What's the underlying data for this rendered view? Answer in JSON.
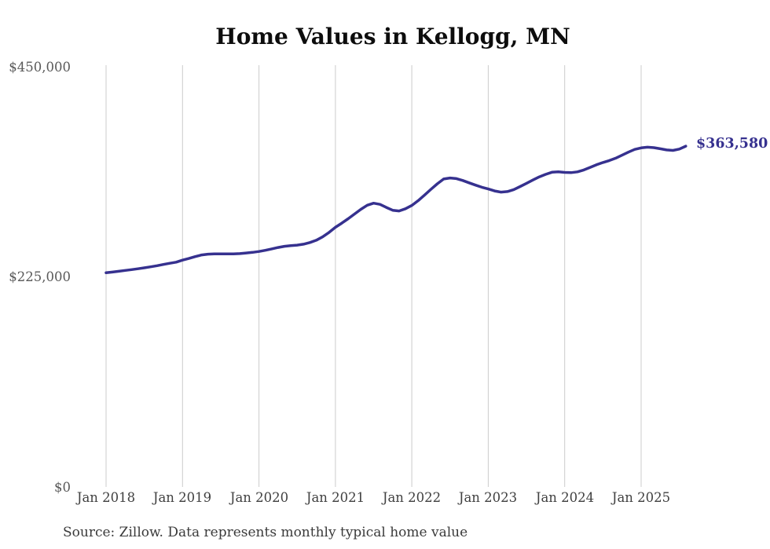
{
  "page": {
    "source_note": "Source: Zillow. Data represents monthly typical home value"
  },
  "colors": {
    "line": "#36318F",
    "grid": "#cccccc",
    "end_label": "#36318F",
    "title": "#0d0d0d",
    "background": "#ffffff"
  },
  "chart_data": {
    "type": "line",
    "title": "Home Values in Kellogg, MN",
    "series_name": "Typical home value",
    "frequency": "monthly",
    "x_start": "Jan 2018",
    "x_end": "Aug 2025",
    "x_ticks": [
      "Jan 2018",
      "Jan 2019",
      "Jan 2020",
      "Jan 2021",
      "Jan 2022",
      "Jan 2023",
      "Jan 2024",
      "Jan 2025"
    ],
    "y_ticks": [
      "$450,000",
      "$225,000",
      "$0"
    ],
    "y_tick_values": [
      450000,
      225000,
      0
    ],
    "ylim": [
      0,
      450000
    ],
    "grid": "vertical-only",
    "legend": "none",
    "end_label": "$363,580",
    "last_value": 363580,
    "values": [
      228500,
      229300,
      230100,
      231000,
      231900,
      232800,
      233800,
      234900,
      236100,
      237400,
      238700,
      239800,
      242000,
      243800,
      245800,
      247500,
      248400,
      248700,
      248700,
      248600,
      248700,
      249000,
      249600,
      250300,
      251200,
      252500,
      254000,
      255500,
      256800,
      257500,
      258000,
      259000,
      260800,
      263200,
      266800,
      271600,
      277000,
      281500,
      286200,
      291200,
      296200,
      300600,
      302800,
      301500,
      298200,
      295200,
      294500,
      296800,
      300300,
      305500,
      311500,
      317600,
      323500,
      328600,
      329700,
      329000,
      327000,
      324500,
      322000,
      319800,
      317900,
      315800,
      314600,
      315200,
      317300,
      320500,
      324000,
      327500,
      330800,
      333500,
      335800,
      336200,
      335600,
      335400,
      336200,
      338200,
      341000,
      343800,
      346200,
      348300,
      350800,
      354000,
      357200,
      360200,
      361800,
      362500,
      362000,
      360800,
      359600,
      359100,
      360500,
      363580
    ]
  }
}
